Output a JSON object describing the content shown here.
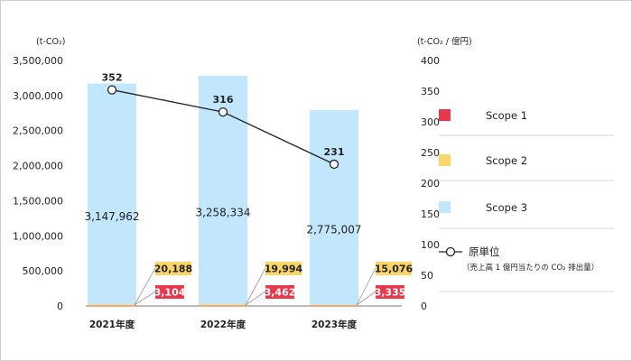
{
  "chart_data": {
    "type": "bar",
    "left_axis_unit": "(t-CO₂)",
    "right_axis_unit": "(t-CO₂ / 億円)",
    "categories": [
      "2021年度",
      "2022年度",
      "2023年度"
    ],
    "ylim": [
      0,
      3500000
    ],
    "y2lim": [
      0,
      400
    ],
    "yticks": [
      0,
      500000,
      1000000,
      1500000,
      2000000,
      2500000,
      3000000,
      3500000
    ],
    "y2ticks": [
      0,
      50,
      100,
      150,
      200,
      250,
      300,
      350,
      400
    ],
    "series": [
      {
        "name": "Scope 1",
        "color": "#e8394c",
        "values": [
          3104,
          3462,
          3335
        ],
        "labels": [
          "3,104",
          "3,462",
          "3,335"
        ]
      },
      {
        "name": "Scope 2",
        "color": "#fcd669",
        "values": [
          20188,
          19994,
          15076
        ],
        "labels": [
          "20,188",
          "19,994",
          "15,076"
        ]
      },
      {
        "name": "Scope 3",
        "color": "#c2e6fb",
        "values": [
          3147962,
          3258334,
          2775007
        ],
        "labels": [
          "3,147,962",
          "3,258,334",
          "2,775,007"
        ]
      }
    ],
    "line_series": {
      "name": "原単位",
      "note": "（売上高 1 億円当たりの CO₂ 排出量）",
      "values": [
        352,
        316,
        231
      ],
      "labels": [
        "352",
        "316",
        "231"
      ]
    },
    "legend_position": "right",
    "grid": false
  }
}
